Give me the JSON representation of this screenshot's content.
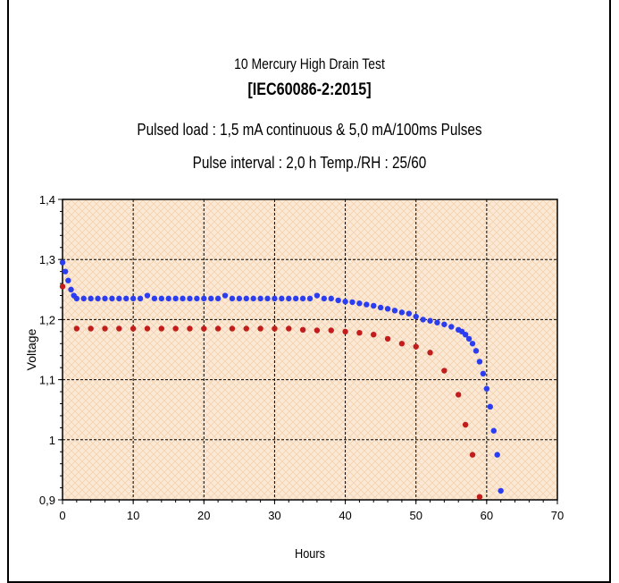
{
  "chart_data": {
    "type": "scatter",
    "title": "10 Mercury High Drain Test",
    "subtitle": "[IEC60086-2:2015]",
    "subtitle2": "Pulsed load : 1,5 mA continuous & 5,0 mA/100ms Pulses",
    "subtitle3": "Pulse interval : 2,0 h Temp./RH : 25/60",
    "xlabel": "Hours",
    "ylabel": "Voltage",
    "xlim": [
      0,
      70
    ],
    "ylim": [
      0.9,
      1.4
    ],
    "grid": true,
    "x_ticks": [
      "0",
      "10",
      "20",
      "30",
      "40",
      "50",
      "60",
      "70"
    ],
    "y_ticks": [
      "0,9",
      "1",
      "1,1",
      "1,2",
      "1,3",
      "1,4"
    ],
    "colors": {
      "continuous": "#2a3df0",
      "pulse": "#c21c1c",
      "plot_bg": "#fbe9d6",
      "grid": "#000000"
    },
    "series": [
      {
        "key": "continuous",
        "x": [
          0,
          0.4,
          0.8,
          1.2,
          1.6,
          2,
          3,
          4,
          5,
          6,
          7,
          8,
          9,
          10,
          11,
          12,
          13,
          14,
          15,
          16,
          17,
          18,
          19,
          20,
          21,
          22,
          23,
          24,
          25,
          26,
          27,
          28,
          29,
          30,
          31,
          32,
          33,
          34,
          35,
          36,
          37,
          38,
          39,
          40,
          41,
          42,
          43,
          44,
          45,
          46,
          47,
          48,
          49,
          50,
          51,
          52,
          53,
          54,
          55,
          56,
          56.5,
          57,
          57.5,
          58,
          58.5,
          59,
          59.5,
          60,
          60.5,
          61,
          61.5,
          62
        ],
        "y": [
          1.295,
          1.28,
          1.265,
          1.25,
          1.24,
          1.235,
          1.235,
          1.235,
          1.235,
          1.235,
          1.235,
          1.235,
          1.235,
          1.235,
          1.235,
          1.24,
          1.235,
          1.235,
          1.235,
          1.235,
          1.235,
          1.235,
          1.235,
          1.235,
          1.235,
          1.235,
          1.24,
          1.235,
          1.235,
          1.235,
          1.235,
          1.235,
          1.235,
          1.235,
          1.235,
          1.235,
          1.235,
          1.235,
          1.235,
          1.24,
          1.235,
          1.235,
          1.232,
          1.23,
          1.229,
          1.227,
          1.225,
          1.223,
          1.22,
          1.218,
          1.215,
          1.212,
          1.21,
          1.205,
          1.2,
          1.198,
          1.195,
          1.192,
          1.188,
          1.183,
          1.18,
          1.175,
          1.168,
          1.16,
          1.148,
          1.13,
          1.11,
          1.085,
          1.055,
          1.015,
          0.975,
          0.915
        ]
      },
      {
        "key": "pulse",
        "x": [
          0,
          2,
          4,
          6,
          8,
          10,
          12,
          14,
          16,
          18,
          20,
          22,
          24,
          26,
          28,
          30,
          32,
          34,
          36,
          38,
          40,
          42,
          44,
          46,
          48,
          50,
          52,
          54,
          56,
          57,
          58,
          59
        ],
        "y": [
          1.255,
          1.185,
          1.185,
          1.185,
          1.185,
          1.185,
          1.185,
          1.185,
          1.185,
          1.185,
          1.185,
          1.185,
          1.185,
          1.185,
          1.185,
          1.185,
          1.185,
          1.183,
          1.182,
          1.182,
          1.18,
          1.178,
          1.175,
          1.168,
          1.16,
          1.155,
          1.145,
          1.115,
          1.075,
          1.025,
          0.975,
          0.905
        ]
      }
    ]
  }
}
